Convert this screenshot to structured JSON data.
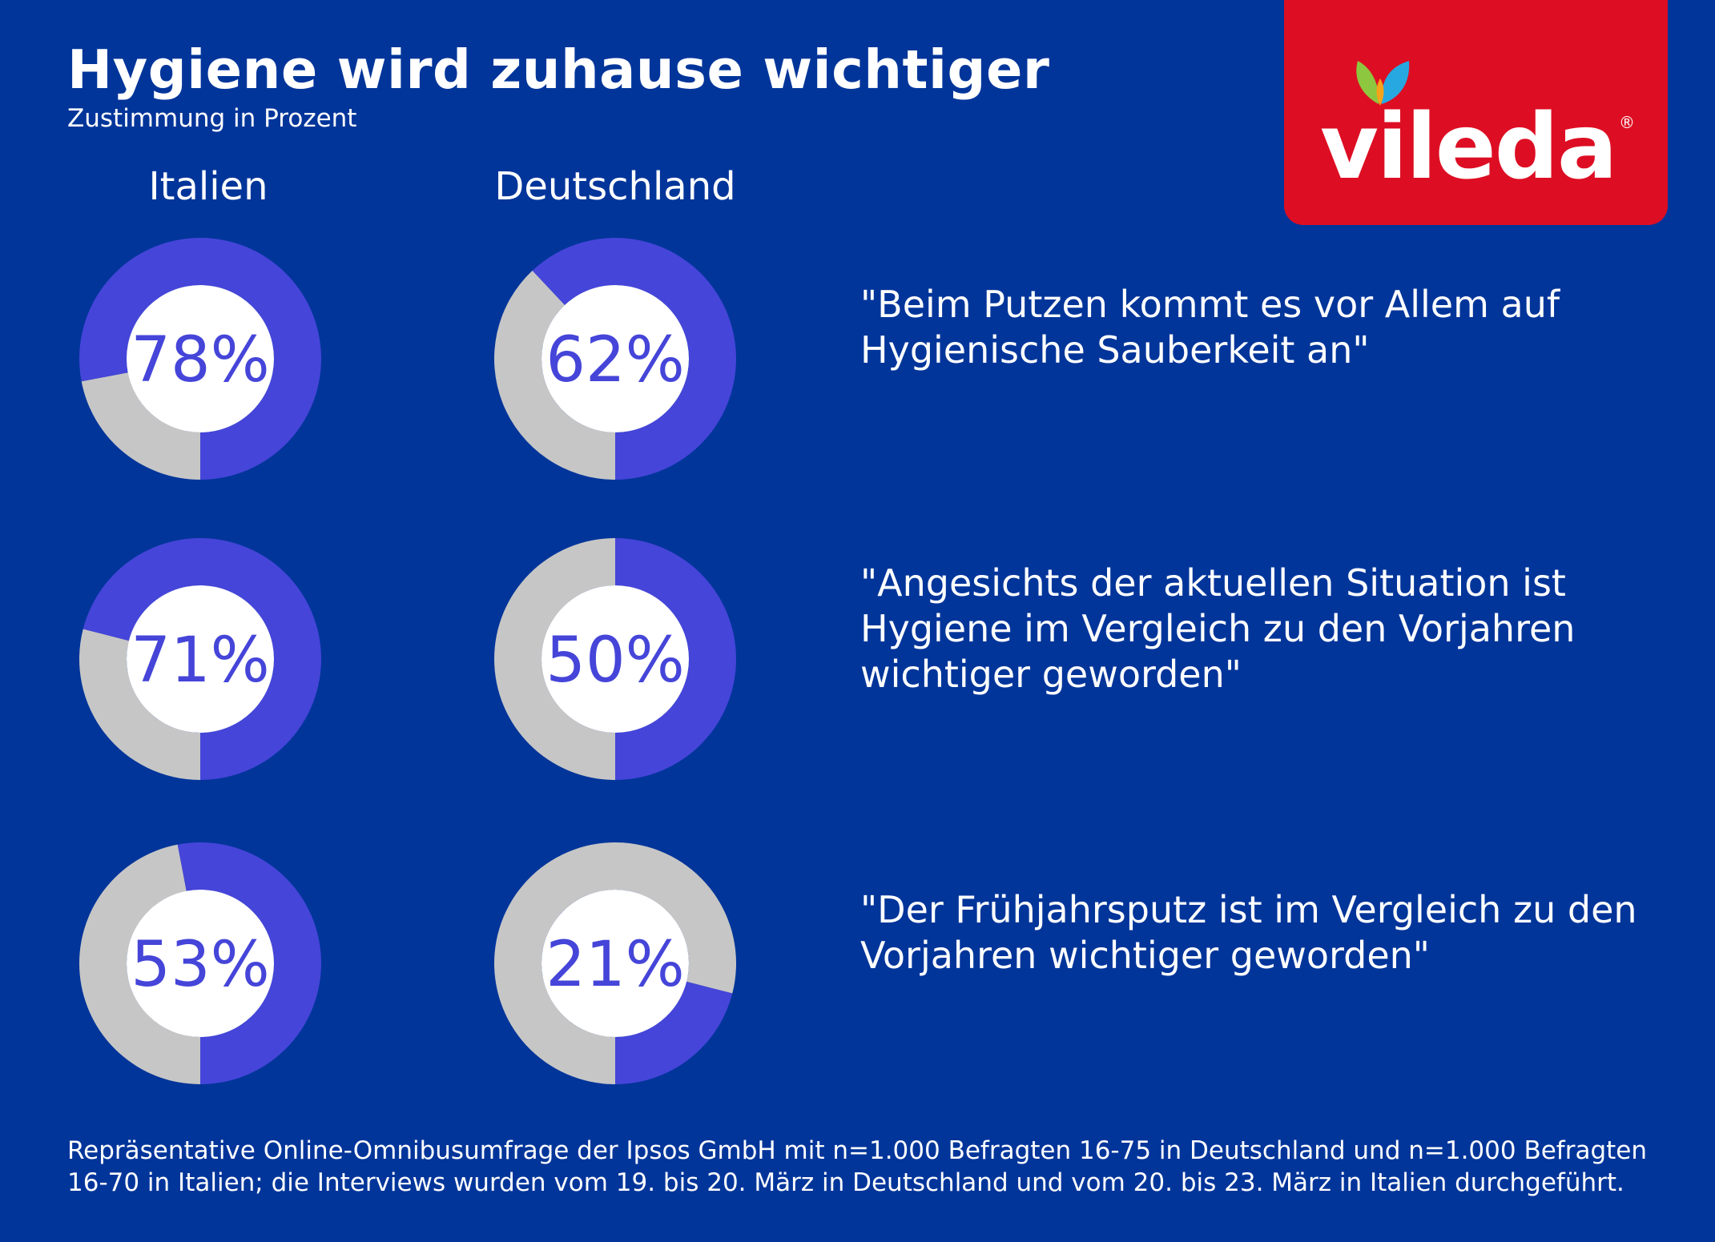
{
  "title": "Hygiene wird zuhause wichtiger",
  "subtitle": "Zustimmung in Prozent",
  "columns": [
    "Italien",
    "Deutschland"
  ],
  "brand": {
    "logo_text": "vileda",
    "registered_mark": "®",
    "color": "#dd0e23"
  },
  "colors": {
    "background": "#01359a",
    "filled": "#4545d9",
    "remainder": "#c6c6c6",
    "text": "#ffffff"
  },
  "chart_data": {
    "type": "pie",
    "subtype": "donut",
    "title": "Hygiene wird zuhause wichtiger",
    "subtitle": "Zustimmung in Prozent",
    "unit": "%",
    "columns": [
      "Italien",
      "Deutschland"
    ],
    "rows": [
      {
        "statement": "\"Beim Putzen kommt es vor Allem auf Hygienische Sauberkeit an\"",
        "values": [
          78,
          62
        ],
        "labels": [
          "78%",
          "62%"
        ]
      },
      {
        "statement": "\"Angesichts der aktuellen Situation ist Hygiene im Vergleich zu den Vorjahren wichtiger geworden\"",
        "values": [
          71,
          50
        ],
        "labels": [
          "71%",
          "50%"
        ]
      },
      {
        "statement": "\"Der Frühjahrsputz ist im Vergleich zu den Vorjahren wichtiger geworden\"",
        "values": [
          53,
          21
        ],
        "labels": [
          "53%",
          "21%"
        ]
      }
    ]
  },
  "footnote": "Repräsentative Online-Omnibusumfrage der Ipsos GmbH mit n=1.000 Befragten 16-75 in Deutschland und n=1.000 Befragten 16-70 in Italien; die Interviews wurden vom 19. bis 20. März in Deutschland und vom 20. bis 23. März in Italien durchgeführt."
}
